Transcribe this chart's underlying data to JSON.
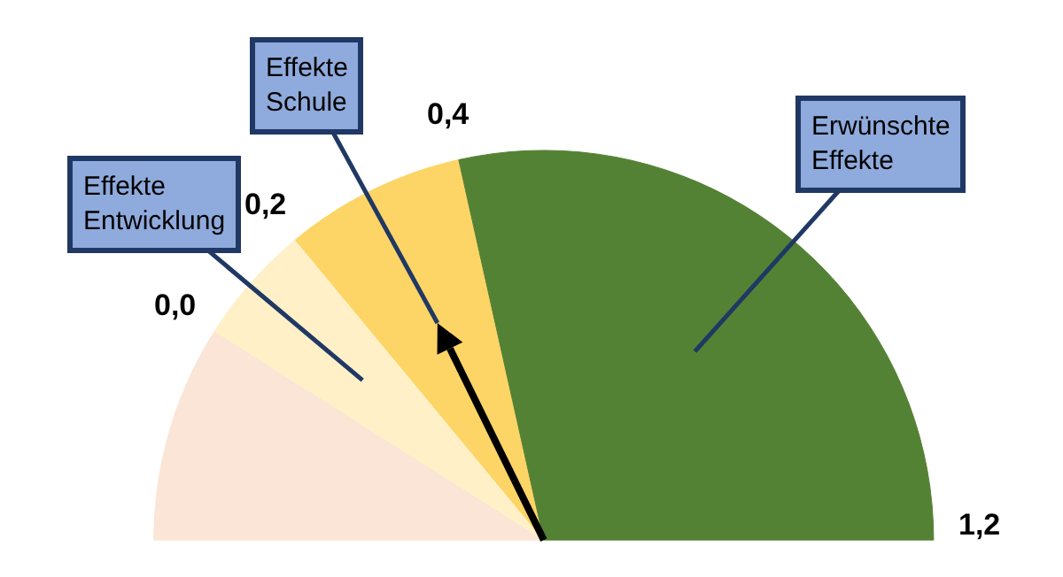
{
  "chart_data": {
    "type": "pie",
    "categories": [
      null,
      "Effekte Entwicklung",
      "Effekte Schule",
      "Erwünschte Effekte"
    ],
    "values": [
      18,
      10,
      15,
      57
    ],
    "colors": [
      "#fae5d6",
      "#fff0c8",
      "#fdd566",
      "#548235"
    ],
    "needle": "Effekte Schule",
    "annotations": [
      "0,0",
      "0,2",
      "0,4",
      "1,2"
    ]
  }
}
